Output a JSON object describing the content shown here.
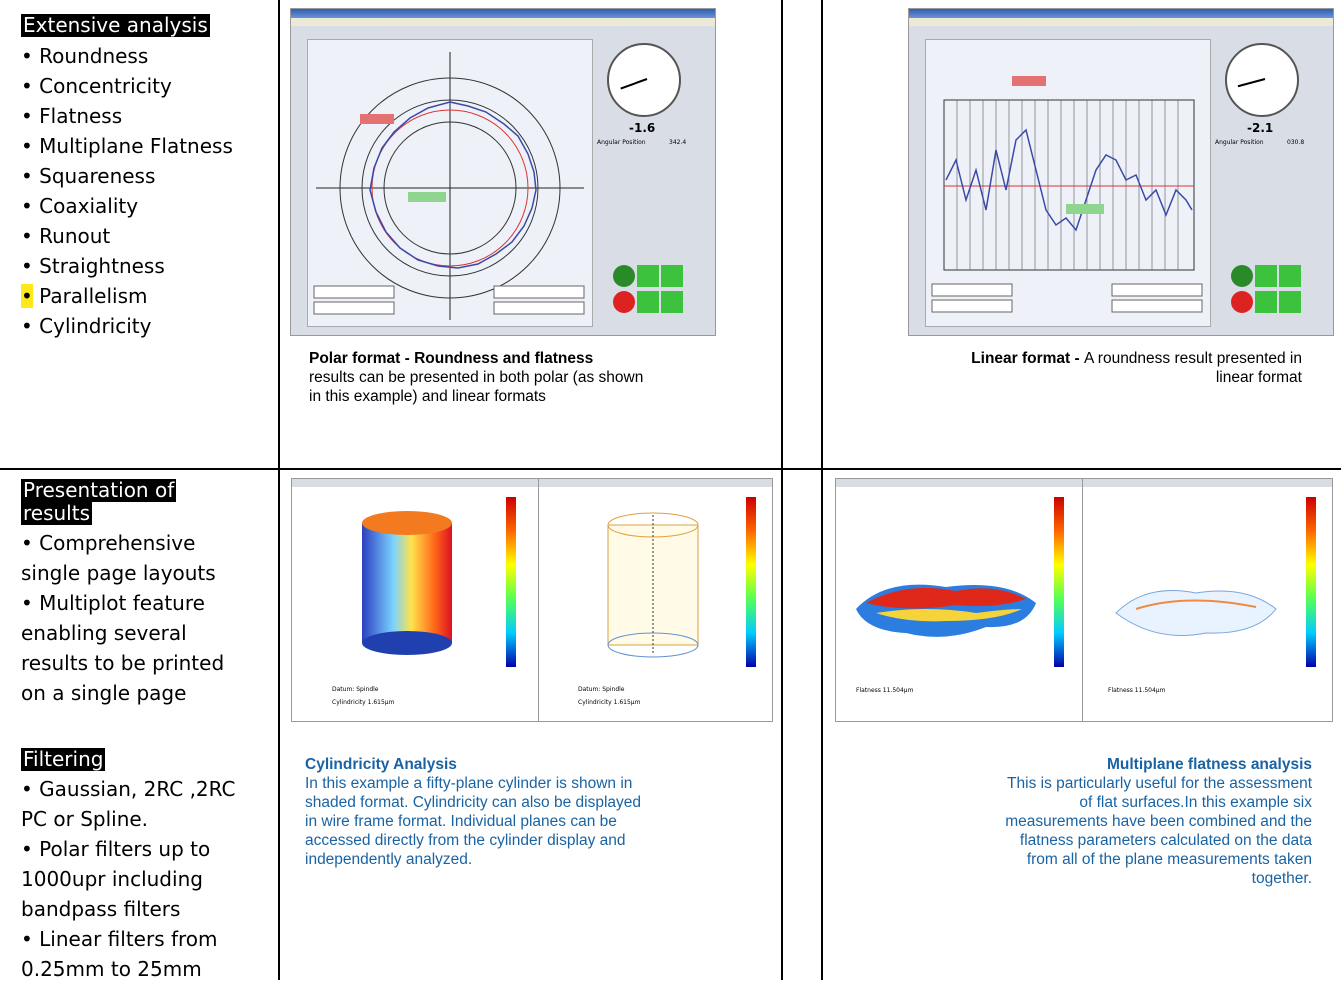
{
  "left": {
    "section1": {
      "heading": "Extensive analysis",
      "items": [
        "Roundness",
        "Concentricity",
        "Flatness",
        "Multiplane Flatness",
        "Squareness",
        "Coaxiality",
        "Runout",
        "Straightness",
        "Parallelism",
        "Cylindricity"
      ]
    },
    "section2": {
      "heading_line1": "Presentation of",
      "heading_line2": "results",
      "lines": [
        "• Comprehensive",
        "single page layouts",
        "• Multiplot feature",
        "enabling several",
        "results to be printed",
        "on a single page"
      ]
    },
    "section3": {
      "heading": "Filtering",
      "lines": [
        "• Gaussian, 2RC ,2RC",
        "PC or Spline.",
        "• Polar filters up to",
        "1000upr including",
        "bandpass filters",
        "• Linear filters from",
        "0.25mm to 25mm"
      ]
    }
  },
  "bullet_char": "•",
  "panels": {
    "polar": {
      "dial_value": "-1.6",
      "dial_label": "Angular Position",
      "dial_reading": "342.4",
      "caption_bold": "Polar format - Roundness and flatness",
      "caption_text": [
        "results can be presented in both polar (as shown",
        "in this example) and linear formats"
      ]
    },
    "linear": {
      "dial_value": "-2.1",
      "dial_label": "Angular Position",
      "dial_reading": "030.8",
      "caption_bold": "Linear format  - ",
      "caption_rest": "A roundness result presented in",
      "caption_line2": "linear format"
    },
    "cyl": {
      "label_left": "Datum: Spindle",
      "value_left": "Cylindricity 1.615μm",
      "caption_title": "Cylindricity  Analysis",
      "caption_lines": [
        "In this example a fifty-plane cylinder is shown in",
        "shaded format. Cylindricity can also be displayed",
        "in wire frame format. Individual planes can be",
        "accessed directly from the cylinder display and",
        "independently analyzed."
      ]
    },
    "flat": {
      "value_left": "Flatness 11.504μm",
      "value_right": "Flatness 11.504μm",
      "caption_title": "Multiplane flatness analysis",
      "caption_lines": [
        "This is particularly useful for the assessment",
        "of flat surfaces.In this example six",
        "measurements have been combined and the",
        "flatness parameters calculated on the data",
        "from all of the plane measurements taken",
        "together."
      ]
    }
  },
  "colors": {
    "caption_blue": "#1a63a3",
    "highlight": "#ffe81a",
    "heading_bg": "#000000"
  }
}
